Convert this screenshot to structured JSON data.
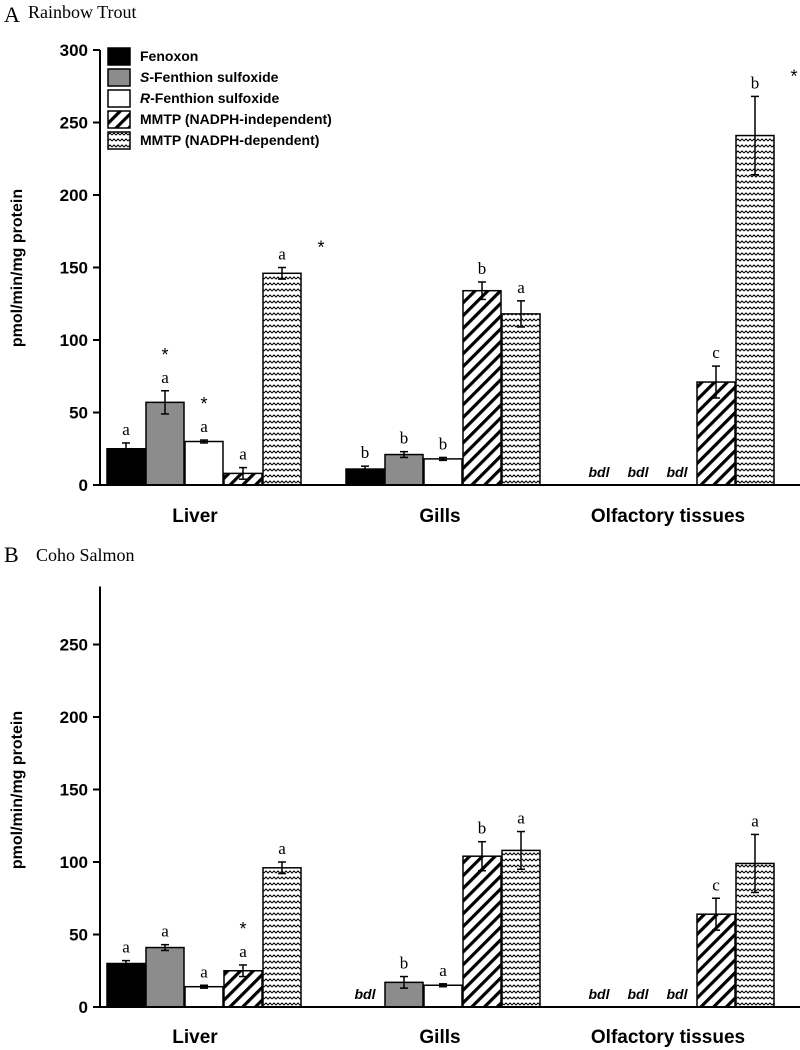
{
  "chart_data": [
    {
      "type": "bar",
      "panel": "A",
      "title": "Rainbow Trout",
      "ylabel": "pmol/min/mg protein",
      "ylim": [
        0,
        300
      ],
      "yticks": [
        0,
        50,
        100,
        150,
        200,
        250,
        300
      ],
      "categories": [
        "Liver",
        "Gills",
        "Olfactory tissues"
      ],
      "legend": [
        {
          "label": "Fenoxon",
          "prefix": "",
          "pattern": "solid-black"
        },
        {
          "label": "-Fenthion sulfoxide",
          "prefix": "S",
          "pattern": "solid-gray"
        },
        {
          "label": "-Fenthion sulfoxide",
          "prefix": "R",
          "pattern": "white"
        },
        {
          "label": "MMTP (NADPH-independent)",
          "prefix": "",
          "pattern": "diagonal"
        },
        {
          "label": "MMTP (NADPH-dependent)",
          "prefix": "",
          "pattern": "wavy"
        }
      ],
      "series": [
        {
          "name": "Fenoxon",
          "values": [
            25,
            11,
            null
          ],
          "errors": [
            4,
            2,
            null
          ],
          "letters": [
            "a",
            "b",
            ""
          ],
          "asterisks": [
            false,
            false,
            false
          ],
          "bdl": [
            false,
            false,
            true
          ]
        },
        {
          "name": "S-Fenthion sulfoxide",
          "values": [
            57,
            21,
            null
          ],
          "errors": [
            8,
            2,
            null
          ],
          "letters": [
            "a",
            "b",
            ""
          ],
          "asterisks": [
            true,
            false,
            false
          ],
          "bdl": [
            false,
            false,
            true
          ]
        },
        {
          "name": "R-Fenthion sulfoxide",
          "values": [
            30,
            18,
            null
          ],
          "errors": [
            1,
            1,
            null
          ],
          "letters": [
            "a",
            "b",
            ""
          ],
          "asterisks": [
            true,
            false,
            false
          ],
          "bdl": [
            false,
            false,
            true
          ]
        },
        {
          "name": "MMTP (NADPH-independent)",
          "values": [
            8,
            134,
            71
          ],
          "errors": [
            4,
            6,
            11
          ],
          "letters": [
            "a",
            "b",
            "c"
          ],
          "asterisks": [
            false,
            false,
            false
          ],
          "bdl": [
            false,
            false,
            false
          ]
        },
        {
          "name": "MMTP (NADPH-dependent)",
          "values": [
            146,
            118,
            241
          ],
          "errors": [
            4,
            9,
            27
          ],
          "letters": [
            "a",
            "a",
            "b"
          ],
          "asterisks": [
            true,
            false,
            true
          ],
          "bdl": [
            false,
            false,
            false
          ]
        }
      ]
    },
    {
      "type": "bar",
      "panel": "B",
      "title": "Coho Salmon",
      "ylabel": "pmol/min/mg protein",
      "ylim": [
        0,
        290
      ],
      "yticks": [
        0,
        50,
        100,
        150,
        200,
        250
      ],
      "categories": [
        "Liver",
        "Gills",
        "Olfactory tissues"
      ],
      "series": [
        {
          "name": "Fenoxon",
          "values": [
            30,
            null,
            null
          ],
          "errors": [
            2,
            null,
            null
          ],
          "letters": [
            "a",
            "",
            ""
          ],
          "asterisks": [
            false,
            false,
            false
          ],
          "bdl": [
            false,
            true,
            true
          ]
        },
        {
          "name": "S-Fenthion sulfoxide",
          "values": [
            41,
            17,
            null
          ],
          "errors": [
            2,
            4,
            null
          ],
          "letters": [
            "a",
            "b",
            ""
          ],
          "asterisks": [
            false,
            false,
            false
          ],
          "bdl": [
            false,
            false,
            true
          ]
        },
        {
          "name": "R-Fenthion sulfoxide",
          "values": [
            14,
            15,
            null
          ],
          "errors": [
            1,
            1,
            null
          ],
          "letters": [
            "a",
            "a",
            ""
          ],
          "asterisks": [
            false,
            false,
            false
          ],
          "bdl": [
            false,
            false,
            true
          ]
        },
        {
          "name": "MMTP (NADPH-independent)",
          "values": [
            25,
            104,
            64
          ],
          "errors": [
            4,
            10,
            11
          ],
          "letters": [
            "a",
            "b",
            "c"
          ],
          "asterisks": [
            true,
            false,
            false
          ],
          "bdl": [
            false,
            false,
            false
          ]
        },
        {
          "name": "MMTP (NADPH-dependent)",
          "values": [
            96,
            108,
            99
          ],
          "errors": [
            4,
            13,
            20
          ],
          "letters": [
            "a",
            "a",
            "a"
          ],
          "asterisks": [
            false,
            false,
            false
          ],
          "bdl": [
            false,
            false,
            false
          ]
        }
      ]
    }
  ],
  "labels": {
    "bdl": "bdl",
    "asterisk": "*"
  }
}
